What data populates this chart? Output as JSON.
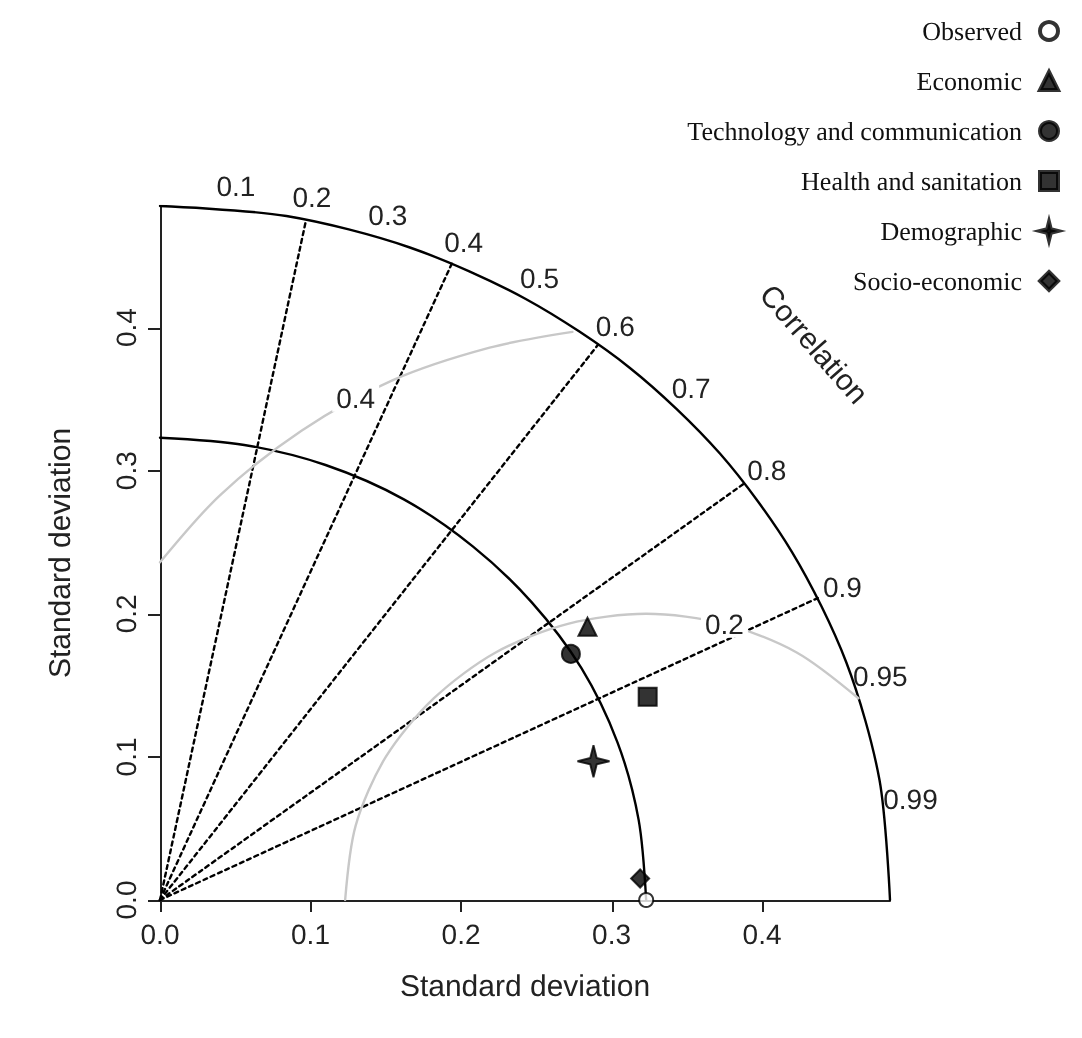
{
  "chart_data": {
    "type": "scatter",
    "xlabel": "Standard deviation",
    "ylabel": "Standard deviation",
    "xlim": [
      0,
      0.485
    ],
    "ylim": [
      0,
      0.485
    ],
    "xticks": [
      {
        "value": 0,
        "label": "0.0"
      },
      {
        "value": 0.1,
        "label": "0.1"
      },
      {
        "value": 0.2,
        "label": "0.2"
      },
      {
        "value": 0.3,
        "label": "0.3"
      },
      {
        "value": 0.4,
        "label": "0.4"
      }
    ],
    "yticks": [
      {
        "value": 0,
        "label": "0.0"
      },
      {
        "value": 0.1,
        "label": "0.1"
      },
      {
        "value": 0.2,
        "label": "0.2"
      },
      {
        "value": 0.3,
        "label": "0.3"
      },
      {
        "value": 0.4,
        "label": "0.4"
      }
    ],
    "grid": false,
    "legend": "top right",
    "annotations": [
      "Correlation",
      {
        "text": "0.1",
        "x": 0.0485,
        "y": 0.4826
      },
      {
        "text": "0.2",
        "x": 0.097,
        "y": 0.475
      },
      {
        "text": "0.3",
        "x": 0.1455,
        "y": 0.4627
      },
      {
        "text": "0.4",
        "x": 0.194,
        "y": 0.4445
      },
      {
        "text": "0.5",
        "x": 0.2425,
        "y": 0.42
      },
      {
        "text": "0.6",
        "x": 0.291,
        "y": 0.388
      },
      {
        "text": "0.7",
        "x": 0.3395,
        "y": 0.3464
      },
      {
        "text": "0.8",
        "x": 0.388,
        "y": 0.291
      },
      {
        "text": "0.9",
        "x": 0.4365,
        "y": 0.2114
      },
      {
        "text": "0.95",
        "x": 0.4608,
        "y": 0.1514
      },
      {
        "text": "0.99",
        "x": 0.4802,
        "y": 0.0684
      },
      {
        "text": "0.2",
        "x": 0.375,
        "y": 0.193
      },
      {
        "text": "0.4",
        "x": 0.13,
        "y": 0.351
      }
    ],
    "series": [
      {
        "type": "line",
        "color": "#000000",
        "line_style": "solid",
        "x": [
          0.485,
          0.478,
          0.456,
          0.42,
          0.372,
          0.312,
          0.243,
          0.166,
          0.084,
          0
        ],
        "values": [
          0,
          0.084,
          0.166,
          0.243,
          0.312,
          0.372,
          0.42,
          0.456,
          0.478,
          0.485
        ]
      },
      {
        "type": "line",
        "color": "#000000",
        "line_style": "solid",
        "x": [
          0.323,
          0.318,
          0.304,
          0.28,
          0.247,
          0.208,
          0.162,
          0.11,
          0.056,
          0
        ],
        "values": [
          0,
          0.056,
          0.11,
          0.162,
          0.208,
          0.247,
          0.28,
          0.304,
          0.318,
          0.323
        ]
      },
      {
        "type": "line",
        "color": "#000000",
        "line_style": "dotted",
        "x": [
          0,
          0.097
        ],
        "values": [
          0,
          0.475
        ]
      },
      {
        "type": "line",
        "color": "#000000",
        "line_style": "dotted",
        "x": [
          0,
          0.194
        ],
        "values": [
          0,
          0.445
        ]
      },
      {
        "type": "line",
        "color": "#000000",
        "line_style": "dotted",
        "x": [
          0,
          0.291
        ],
        "values": [
          0,
          0.388
        ]
      },
      {
        "type": "line",
        "color": "#000000",
        "line_style": "dotted",
        "x": [
          0,
          0.388
        ],
        "values": [
          0,
          0.291
        ]
      },
      {
        "type": "line",
        "color": "#000000",
        "line_style": "dotted",
        "x": [
          0,
          0.437
        ],
        "values": [
          0,
          0.211
        ]
      },
      {
        "type": "line",
        "color": "#c8c8c8",
        "line_style": "solid",
        "x": [
          0.464,
          0.423,
          0.375,
          0.323,
          0.271,
          0.223,
          0.182,
          0.15,
          0.13,
          0.123
        ],
        "values": [
          0.141,
          0.173,
          0.193,
          0.2,
          0.193,
          0.173,
          0.141,
          0.1,
          0.052,
          0
        ]
      },
      {
        "type": "line",
        "color": "#c8c8c8",
        "line_style": "solid",
        "x": [
          0.274,
          0.219,
          0.154,
          0.094,
          0.04,
          0
        ],
        "values": [
          0.397,
          0.386,
          0.363,
          0.328,
          0.283,
          0.236
        ]
      },
      {
        "name": "Observed",
        "marker": "circle",
        "color": "#ffffff",
        "x": [
          0.323
        ],
        "values": [
          0
        ]
      },
      {
        "name": "Economic",
        "marker": "triangle",
        "color": "#000000",
        "x": [
          0.284
        ],
        "values": [
          0.191
        ]
      },
      {
        "name": "Technology and communication",
        "marker": "circle",
        "color": "#000000",
        "x": [
          0.273
        ],
        "values": [
          0.172
        ]
      },
      {
        "name": "Health and sanitation",
        "marker": "square",
        "color": "#000000",
        "x": [
          0.324
        ],
        "values": [
          0.142
        ]
      },
      {
        "name": "Demographic",
        "marker": "cross",
        "color": "#000000",
        "x": [
          0.288
        ],
        "values": [
          0.097
        ]
      },
      {
        "name": "Socio-economic",
        "marker": "diamond",
        "color": "#000000",
        "x": [
          0.319
        ],
        "values": [
          0.015
        ]
      }
    ]
  }
}
